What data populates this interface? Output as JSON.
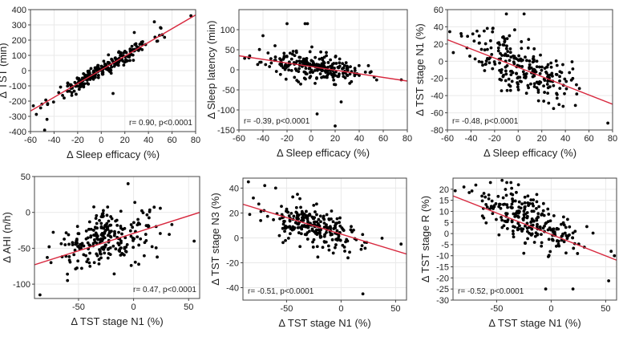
{
  "chart_data": [
    {
      "type": "scatter",
      "title": "",
      "xlabel": "Δ Sleep efficacy (%)",
      "ylabel": "Δ TST  (min)",
      "xlim": [
        -60,
        80
      ],
      "ylim": [
        -400,
        400
      ],
      "xticks": [
        -60,
        -40,
        -20,
        0,
        20,
        40,
        60,
        80
      ],
      "yticks": [
        -400,
        -300,
        -200,
        -100,
        0,
        100,
        200,
        300,
        400
      ],
      "annotation": "r= 0.90, p<0.0001",
      "r": 0.9,
      "slope": 4.5,
      "intercept": 5,
      "n": 240,
      "spread": 26,
      "seed": 11,
      "fit_line": {
        "x": [
          -60,
          80
        ],
        "y": [
          -265,
          365
        ]
      },
      "outliers": [
        [
          76,
          360
        ],
        [
          -48,
          -390
        ],
        [
          -46,
          -320
        ],
        [
          28,
          250
        ],
        [
          45,
          320
        ],
        [
          10,
          -150
        ]
      ]
    },
    {
      "type": "scatter",
      "title": "",
      "xlabel": "Δ Sleep efficacy (%)",
      "ylabel": "Δ Sleep latency  (min)",
      "xlim": [
        -60,
        80
      ],
      "ylim": [
        -150,
        150
      ],
      "xticks": [
        -60,
        -40,
        -20,
        0,
        20,
        40,
        60,
        80
      ],
      "yticks": [
        -150,
        -100,
        -50,
        0,
        50,
        100
      ],
      "annotation": "r= -0.39, p<0.0001",
      "r": -0.39,
      "slope": -0.45,
      "intercept": 8,
      "n": 240,
      "spread": 16,
      "seed": 23,
      "fit_line": {
        "x": [
          -60,
          80
        ],
        "y": [
          35,
          -28
        ]
      },
      "outliers": [
        [
          -20,
          115
        ],
        [
          -5,
          115
        ],
        [
          -3,
          115
        ],
        [
          -40,
          85
        ],
        [
          75,
          -25
        ],
        [
          20,
          -140
        ],
        [
          5,
          -110
        ],
        [
          25,
          -80
        ],
        [
          -30,
          60
        ]
      ]
    },
    {
      "type": "scatter",
      "title": "",
      "xlabel": "Δ Sleep efficacy (%)",
      "ylabel": "Δ TST stage N1 (%)",
      "xlim": [
        -60,
        80
      ],
      "ylim": [
        -80,
        60
      ],
      "xticks": [
        -60,
        -40,
        -20,
        0,
        20,
        40,
        60,
        80
      ],
      "yticks": [
        -80,
        -60,
        -40,
        -20,
        0,
        20,
        40,
        60
      ],
      "annotation": "r= -0.48, p<0.0001",
      "r": -0.48,
      "slope": -0.55,
      "intercept": -4,
      "n": 240,
      "spread": 16,
      "seed": 37,
      "fit_line": {
        "x": [
          -60,
          80
        ],
        "y": [
          25,
          -50
        ]
      },
      "outliers": [
        [
          -10,
          55
        ],
        [
          5,
          55
        ],
        [
          76,
          -72
        ],
        [
          -55,
          10
        ],
        [
          30,
          -55
        ]
      ]
    },
    {
      "type": "scatter",
      "title": "",
      "xlabel": "Δ TST stage N1 (%)",
      "ylabel": "Δ AHI  (n/h)",
      "xlim": [
        -90,
        60
      ],
      "ylim": [
        -120,
        50
      ],
      "xticks": [
        -50,
        0,
        50
      ],
      "yticks": [
        -100,
        -50,
        0,
        50
      ],
      "annotation": "r= 0.47, p<0.0001",
      "r": 0.47,
      "slope": 0.35,
      "intercept": -28,
      "n": 240,
      "spread": 18,
      "seed": 41,
      "fit_line": {
        "x": [
          -90,
          60
        ],
        "y": [
          -73,
          0
        ]
      },
      "outliers": [
        [
          -85,
          -115
        ],
        [
          -5,
          40
        ],
        [
          55,
          -40
        ],
        [
          -60,
          -95
        ],
        [
          -75,
          -70
        ]
      ]
    },
    {
      "type": "scatter",
      "title": "",
      "xlabel": "Δ TST stage N1 (%)",
      "ylabel": "Δ TST stage N3 (%)",
      "xlim": [
        -90,
        60
      ],
      "ylim": [
        -50,
        48
      ],
      "xticks": [
        -50,
        0,
        50
      ],
      "yticks": [
        -40,
        -20,
        0,
        20,
        40
      ],
      "annotation": "r= -0.51, p<0.0001",
      "r": -0.51,
      "slope": -0.25,
      "intercept": 2,
      "n": 240,
      "spread": 8,
      "seed": 53,
      "fit_line": {
        "x": [
          -90,
          60
        ],
        "y": [
          27,
          -13
        ]
      },
      "outliers": [
        [
          -85,
          45
        ],
        [
          -70,
          42
        ],
        [
          -60,
          40
        ],
        [
          20,
          -45
        ],
        [
          55,
          -5
        ],
        [
          -40,
          35
        ]
      ]
    },
    {
      "type": "scatter",
      "title": "",
      "xlabel": "Δ TST stage N1 (%)",
      "ylabel": "Δ TST stage R (%)",
      "xlim": [
        -90,
        60
      ],
      "ylim": [
        -30,
        25
      ],
      "xticks": [
        -50,
        0,
        50
      ],
      "yticks": [
        -30,
        -25,
        -20,
        -15,
        -10,
        -5,
        0,
        5,
        10,
        15,
        20
      ],
      "annotation": "r= -0.52, p<0.0001",
      "r": -0.52,
      "slope": -0.2,
      "intercept": 1,
      "n": 240,
      "spread": 5.5,
      "seed": 67,
      "fit_line": {
        "x": [
          -90,
          60
        ],
        "y": [
          17,
          -12
        ]
      },
      "outliers": [
        [
          -45,
          24
        ],
        [
          -80,
          21
        ],
        [
          -30,
          22
        ],
        [
          -5,
          -25
        ],
        [
          20,
          -25
        ],
        [
          55,
          -8
        ],
        [
          58,
          -10
        ]
      ]
    }
  ]
}
